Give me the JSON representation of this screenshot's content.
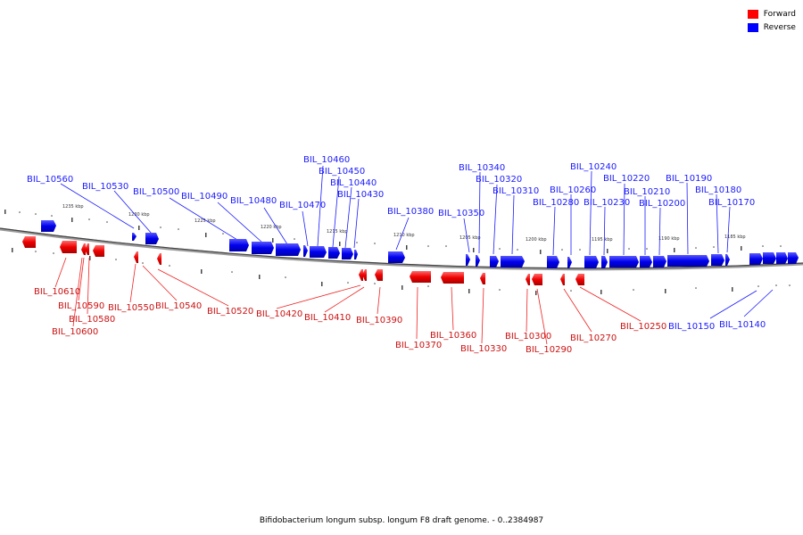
{
  "legend": {
    "items": [
      {
        "label": "Forward",
        "color": "#ff0000"
      },
      {
        "label": "Reverse",
        "color": "#0000ff"
      }
    ]
  },
  "caption": "Bifidobacterium longum subsp. longum F8 draft genome. - 0..2384987",
  "scale_labels": [
    "1235 kbp",
    "1230 kbp",
    "1225 kbp",
    "1220 kbp",
    "1215 kbp",
    "1210 kbp",
    "1205 kbp",
    "1200 kbp",
    "1195 kbp",
    "1190 kbp",
    "1185 kbp"
  ],
  "reverse_labels": [
    "BIL_10560",
    "BIL_10530",
    "BIL_10500",
    "BIL_10490",
    "BIL_10480",
    "BIL_10470",
    "BIL_10460",
    "BIL_10450",
    "BIL_10440",
    "BIL_10430",
    "BIL_10380",
    "BIL_10350",
    "BIL_10340",
    "BIL_10320",
    "BIL_10310",
    "BIL_10280",
    "BIL_10260",
    "BIL_10240",
    "BIL_10230",
    "BIL_10220",
    "BIL_10210",
    "BIL_10200",
    "BIL_10190",
    "BIL_10180",
    "BIL_10170",
    "BIL_10150",
    "BIL_10140"
  ],
  "forward_labels": [
    "BIL_10610",
    "BIL_10590",
    "BIL_10580",
    "BIL_10600",
    "BIL_10550",
    "BIL_10540",
    "BIL_10520",
    "BIL_10420",
    "BIL_10410",
    "BIL_10390",
    "BIL_10370",
    "BIL_10360",
    "BIL_10330",
    "BIL_10300",
    "BIL_10290",
    "BIL_10270",
    "BIL_10250"
  ]
}
